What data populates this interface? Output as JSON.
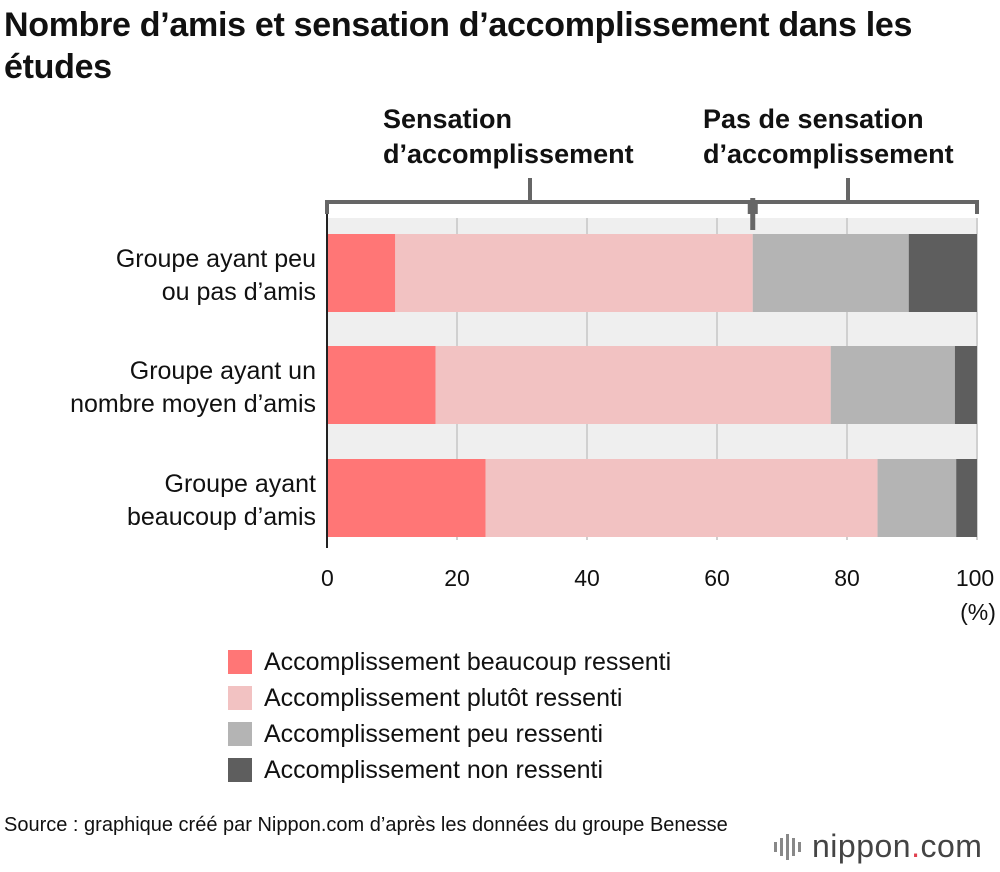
{
  "title": "Nombre d’amis et sensation d’accomplissement dans les études",
  "groups": [
    {
      "lines": [
        "Sensation",
        "d’accomplissement"
      ],
      "range": [
        0,
        65.5
      ]
    },
    {
      "lines": [
        "Pas de sensation",
        "d’accomplissement"
      ],
      "range": [
        65.5,
        100
      ]
    }
  ],
  "colors": {
    "beaucoup": "#ff7676",
    "plutot": "#f2c2c2",
    "peu": "#b4b4b4",
    "non": "#5e5e5e"
  },
  "chart_data": {
    "type": "bar",
    "orientation": "horizontal",
    "stacked": true,
    "categories": [
      [
        "Groupe ayant peu",
        "ou pas d’amis"
      ],
      [
        "Groupe ayant un",
        "nombre moyen d’amis"
      ],
      [
        "Groupe ayant",
        "beaucoup d’amis"
      ]
    ],
    "series": [
      {
        "name": "Accomplissement beaucoup ressenti",
        "color": "#ff7676",
        "values": [
          10.5,
          16.7,
          24.4
        ]
      },
      {
        "name": "Accomplissement plutôt ressenti",
        "color": "#f2c2c2",
        "values": [
          55.0,
          60.8,
          60.3
        ]
      },
      {
        "name": "Accomplissement peu ressenti",
        "color": "#b4b4b4",
        "values": [
          24.0,
          19.1,
          12.1
        ]
      },
      {
        "name": "Accomplissement non ressenti",
        "color": "#5e5e5e",
        "values": [
          10.5,
          3.4,
          3.2
        ]
      }
    ],
    "xticks": [
      "0",
      "20",
      "40",
      "60",
      "80",
      "100"
    ],
    "xunit": "(%)",
    "xlim": [
      0,
      100
    ],
    "grid": true,
    "legend_position": "bottom"
  },
  "source": "Source : graphique créé par Nippon.com d’après les données du groupe Benesse",
  "logo": {
    "name": "nippon",
    "dot": ".",
    "tld": "com"
  }
}
